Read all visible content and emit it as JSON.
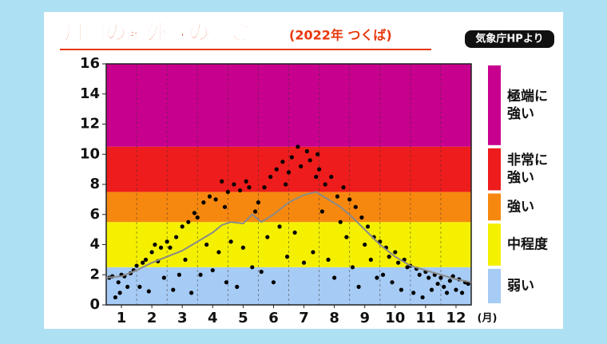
{
  "chart_data": {
    "type": "scatter",
    "title": "月別の紫外線の強さ",
    "subtitle": "(2022年 つくば)",
    "source": "気象庁HPより",
    "x_label": "(月)",
    "xlim": [
      0.5,
      12.5
    ],
    "xticks": [
      1,
      2,
      3,
      4,
      5,
      6,
      7,
      8,
      9,
      10,
      11,
      12
    ],
    "ylim": [
      0,
      16
    ],
    "yticks": [
      0,
      2,
      4,
      6,
      8,
      10,
      12,
      14,
      16
    ],
    "bands": [
      {
        "from": 0,
        "to": 2.5,
        "label": [
          "弱い"
        ],
        "color": "#a6cbf5"
      },
      {
        "from": 2.5,
        "to": 5.5,
        "label": [
          "中程度"
        ],
        "color": "#f5f000"
      },
      {
        "from": 5.5,
        "to": 7.5,
        "label": [
          "強い"
        ],
        "color": "#f7880f"
      },
      {
        "from": 7.5,
        "to": 10.5,
        "label": [
          "非常に",
          "強い"
        ],
        "color": "#ee1c1c"
      },
      {
        "from": 10.5,
        "to": 16,
        "label": [
          "極端に",
          "強い"
        ],
        "color": "#c8008e"
      }
    ],
    "series": [
      {
        "type": "scatter",
        "color": "#000000",
        "x": [
          0.6,
          0.7,
          0.8,
          0.9,
          0.95,
          1.0,
          1.1,
          1.2,
          1.3,
          1.4,
          1.5,
          1.6,
          1.7,
          1.8,
          1.9,
          2.0,
          2.1,
          2.2,
          2.3,
          2.4,
          2.5,
          2.6,
          2.7,
          2.8,
          2.9,
          3.0,
          3.1,
          3.2,
          3.3,
          3.4,
          3.5,
          3.6,
          3.7,
          3.8,
          3.9,
          4.0,
          4.1,
          4.2,
          4.3,
          4.4,
          4.45,
          4.5,
          4.6,
          4.7,
          4.8,
          4.9,
          5.0,
          5.1,
          5.2,
          5.3,
          5.4,
          5.5,
          5.6,
          5.7,
          5.8,
          5.9,
          6.0,
          6.1,
          6.2,
          6.3,
          6.4,
          6.45,
          6.5,
          6.6,
          6.7,
          6.8,
          6.9,
          7.0,
          7.1,
          7.2,
          7.3,
          7.4,
          7.45,
          7.5,
          7.6,
          7.7,
          7.8,
          7.9,
          8.0,
          8.1,
          8.2,
          8.3,
          8.4,
          8.5,
          8.6,
          8.7,
          8.8,
          8.9,
          9.0,
          9.1,
          9.2,
          9.3,
          9.4,
          9.5,
          9.6,
          9.7,
          9.8,
          9.9,
          10.0,
          10.1,
          10.2,
          10.3,
          10.4,
          10.5,
          10.6,
          10.7,
          10.8,
          10.9,
          11.0,
          11.1,
          11.2,
          11.3,
          11.4,
          11.5,
          11.6,
          11.7,
          11.8,
          11.9,
          12.0,
          12.1,
          12.2,
          12.3,
          12.4
        ],
        "values": [
          1.8,
          1.9,
          0.5,
          1.5,
          0.8,
          2.0,
          1.9,
          1.2,
          2.1,
          2.3,
          2.6,
          1.2,
          2.8,
          3.0,
          0.9,
          3.5,
          4.0,
          2.9,
          3.8,
          1.8,
          4.2,
          3.8,
          1.0,
          4.5,
          2.0,
          5.2,
          3.0,
          5.5,
          0.8,
          6.1,
          5.8,
          2.0,
          6.8,
          4.0,
          7.2,
          2.3,
          7.0,
          3.5,
          8.2,
          6.5,
          1.5,
          7.5,
          4.2,
          8.0,
          1.2,
          7.6,
          3.8,
          8.2,
          7.8,
          2.5,
          6.2,
          6.8,
          2.2,
          7.8,
          4.5,
          8.5,
          1.5,
          9.0,
          5.2,
          9.5,
          8.0,
          3.2,
          8.8,
          9.8,
          4.8,
          10.5,
          9.2,
          2.8,
          10.2,
          9.6,
          3.5,
          8.5,
          10.0,
          9.0,
          6.2,
          8.0,
          3.0,
          8.5,
          1.8,
          7.2,
          5.5,
          7.8,
          4.5,
          7.0,
          2.5,
          6.5,
          1.2,
          5.8,
          4.0,
          5.2,
          3.0,
          4.5,
          1.8,
          4.2,
          2.0,
          3.8,
          3.2,
          1.5,
          3.5,
          2.8,
          1.0,
          3.0,
          2.5,
          2.6,
          0.8,
          2.4,
          2.0,
          0.5,
          2.2,
          1.8,
          1.0,
          2.0,
          1.4,
          1.8,
          1.2,
          0.8,
          1.6,
          1.9,
          1.0,
          1.7,
          0.8,
          1.5,
          1.4
        ]
      },
      {
        "type": "line",
        "color": "#8a8a8a",
        "x": [
          0.5,
          1,
          1.5,
          2,
          2.5,
          3,
          3.5,
          4,
          4.3,
          4.6,
          5,
          5.3,
          5.6,
          6,
          6.5,
          7,
          7.4,
          7.8,
          8.2,
          8.6,
          9,
          9.5,
          10,
          10.5,
          11,
          11.5,
          12,
          12.5
        ],
        "values": [
          1.8,
          1.9,
          2.3,
          2.8,
          3.2,
          3.6,
          4.2,
          4.8,
          5.3,
          5.5,
          5.4,
          6.0,
          5.5,
          6.0,
          6.8,
          7.3,
          7.5,
          7.0,
          6.5,
          5.8,
          5.0,
          4.0,
          3.2,
          2.6,
          2.3,
          2.0,
          1.7,
          1.5
        ]
      }
    ]
  }
}
